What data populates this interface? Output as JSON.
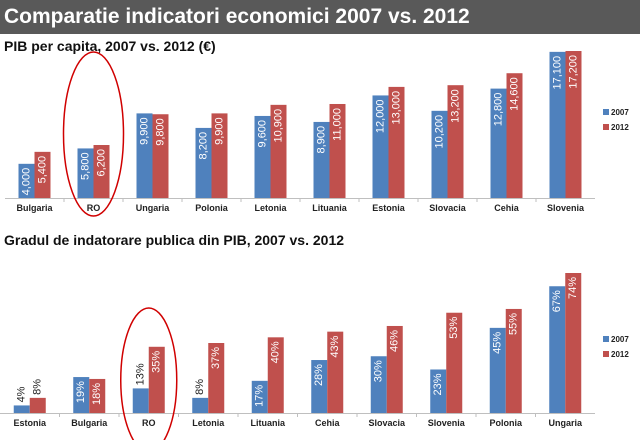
{
  "header": {
    "title": "Comparatie indicatori economici 2007 vs. 2012"
  },
  "colors": {
    "series_2007": "#4f81bd",
    "series_2012": "#c0504d",
    "highlight": "#d00000",
    "header_bg": "#595959"
  },
  "chart_data": [
    {
      "type": "bar",
      "title": "PIB per capita, 2007 vs. 2012 (€)",
      "categories": [
        "Bulgaria",
        "RO",
        "Ungaria",
        "Polonia",
        "Letonia",
        "Lituania",
        "Estonia",
        "Slovacia",
        "Cehia",
        "Slovenia"
      ],
      "series": [
        {
          "name": "2007",
          "values": [
            4000,
            5800,
            9900,
            8200,
            9600,
            8900,
            12000,
            10200,
            12800,
            17100
          ],
          "labels": [
            "4,000",
            "5,800",
            "9,900",
            "8,200",
            "9,600",
            "8,900",
            "12,000",
            "10,200",
            "12,800",
            "17,100"
          ]
        },
        {
          "name": "2012",
          "values": [
            5400,
            6200,
            9800,
            9900,
            10900,
            11000,
            13000,
            13200,
            14600,
            17200
          ],
          "labels": [
            "5,400",
            "6,200",
            "9,800",
            "9,900",
            "10,900",
            "11,000",
            "13,000",
            "13,200",
            "14,600",
            "17,200"
          ]
        }
      ],
      "ylim": [
        0,
        17200
      ],
      "highlight": "RO",
      "legend": "right",
      "grid": false
    },
    {
      "type": "bar",
      "title": "Gradul de indatorare publica din PIB, 2007 vs. 2012",
      "categories": [
        "Estonia",
        "Bulgaria",
        "RO",
        "Letonia",
        "Lituania",
        "Cehia",
        "Slovacia",
        "Slovenia",
        "Polonia",
        "Ungaria"
      ],
      "series": [
        {
          "name": "2007",
          "values": [
            4,
            19,
            13,
            8,
            17,
            28,
            30,
            23,
            45,
            67
          ],
          "labels": [
            "4%",
            "19%",
            "13%",
            "8%",
            "17%",
            "28%",
            "30%",
            "23%",
            "45%",
            "67%"
          ]
        },
        {
          "name": "2012",
          "values": [
            8,
            18,
            35,
            37,
            40,
            43,
            46,
            53,
            55,
            74
          ],
          "labels": [
            "8%",
            "18%",
            "35%",
            "37%",
            "40%",
            "43%",
            "46%",
            "53%",
            "55%",
            "74%"
          ]
        }
      ],
      "ylim": [
        0,
        74
      ],
      "highlight": "RO",
      "legend": "right",
      "grid": false
    }
  ]
}
